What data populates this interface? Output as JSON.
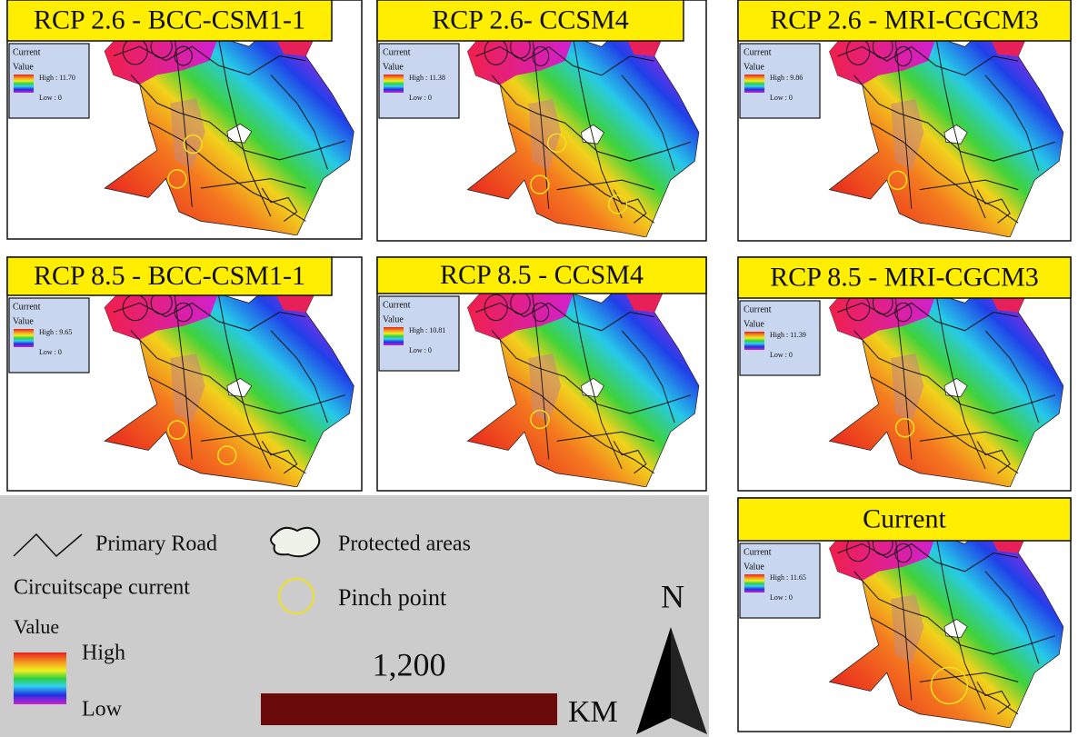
{
  "panels": [
    {
      "title": "RCP 2.6 - BCC-CSM1-1",
      "legend": {
        "title": "Current",
        "subtitle": "Value",
        "high": "High : 11.70",
        "low": "Low : 0"
      }
    },
    {
      "title": "RCP 2.6- CCSM4",
      "legend": {
        "title": "Current",
        "subtitle": "Value",
        "high": "High : 11.38",
        "low": "Low : 0"
      }
    },
    {
      "title": "RCP 2.6 - MRI-CGCM3",
      "legend": {
        "title": "Current",
        "subtitle": "Value",
        "high": "High : 9.86",
        "low": "Low : 0"
      }
    },
    {
      "title": "RCP 8.5 - BCC-CSM1-1",
      "legend": {
        "title": "Current",
        "subtitle": "Value",
        "high": "High : 9.65",
        "low": "Low : 0"
      }
    },
    {
      "title": "RCP 8.5 - CCSM4",
      "legend": {
        "title": "Current",
        "subtitle": "Value",
        "high": "High : 10.81",
        "low": "Low : 0"
      }
    },
    {
      "title": "RCP 8.5 - MRI-CGCM3",
      "legend": {
        "title": "Current",
        "subtitle": "Value",
        "high": "High : 11.39",
        "low": "Low : 0"
      }
    },
    {
      "title": "Current",
      "legend": {
        "title": "Current",
        "subtitle": "Value",
        "high": "High : 11.65",
        "low": "Low : 0"
      }
    }
  ],
  "key": {
    "road": "Primary Road",
    "protected": "Protected areas",
    "current": "Circuitscape current",
    "pinch": "Pinch point",
    "value": "Value",
    "high": "High",
    "low": "Low",
    "scale": "1,200",
    "unit": "KM",
    "north": "N"
  }
}
